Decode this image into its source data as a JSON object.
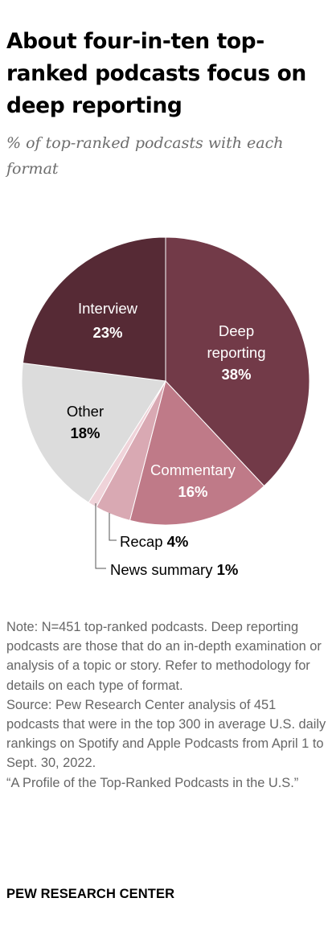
{
  "header": {
    "title": "About four-in-ten top-ranked podcasts focus on deep reporting",
    "subtitle": "% of top-ranked podcasts with each format"
  },
  "chart_data": {
    "type": "pie",
    "title": "About four-in-ten top-ranked podcasts focus on deep reporting",
    "subtitle": "% of top-ranked podcasts with each format",
    "slices": [
      {
        "label_lines": [
          "Deep",
          "reporting"
        ],
        "label": "Deep reporting",
        "value": 38,
        "value_label": "38%",
        "color": "#723a48",
        "text_color": "#ffffff"
      },
      {
        "label_lines": [
          "Commentary"
        ],
        "label": "Commentary",
        "value": 16,
        "value_label": "16%",
        "color": "#bf7a88",
        "text_color": "#ffffff"
      },
      {
        "label_lines": [
          "Recap"
        ],
        "label": "Recap",
        "value": 4,
        "value_label": "4%",
        "color": "#d9a9b3",
        "text_color": "#000000"
      },
      {
        "label_lines": [
          "News summary"
        ],
        "label": "News summary",
        "value": 1,
        "value_label": "1%",
        "color": "#efd3d9",
        "text_color": "#000000"
      },
      {
        "label_lines": [
          "Other"
        ],
        "label": "Other",
        "value": 18,
        "value_label": "18%",
        "color": "#dcdcdc",
        "text_color": "#000000"
      },
      {
        "label_lines": [
          "Interview"
        ],
        "label": "Interview",
        "value": 23,
        "value_label": "23%",
        "color": "#562a35",
        "text_color": "#ffffff"
      }
    ],
    "start_angle_deg": 0,
    "direction": "clockwise"
  },
  "notes": {
    "note": "Note: N=451 top-ranked podcasts. Deep reporting podcasts are those that do an in-depth examination or analysis of a topic or story. Refer to methodology for details on each type of format.",
    "source": "Source: Pew Research Center analysis of 451 podcasts that were in the top 300 in average U.S. daily rankings on Spotify and Apple Podcasts from April 1 to Sept. 30, 2022.",
    "report": "“A Profile of the Top-Ranked Podcasts in the U.S.”"
  },
  "footer": {
    "org": "PEW RESEARCH CENTER"
  }
}
